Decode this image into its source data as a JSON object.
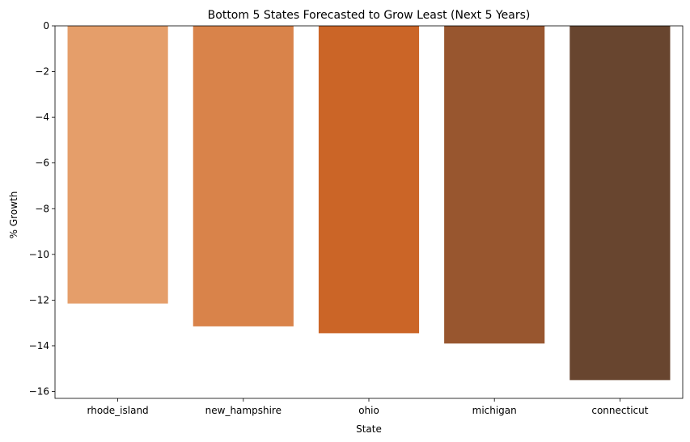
{
  "chart_data": {
    "type": "bar",
    "title": "Bottom 5 States Forecasted to Grow Least (Next 5 Years)",
    "xlabel": "State",
    "ylabel": "% Growth",
    "categories": [
      "rhode_island",
      "new_hampshire",
      "ohio",
      "michigan",
      "connecticut"
    ],
    "values": [
      -12.15,
      -13.15,
      -13.45,
      -13.9,
      -15.5
    ],
    "colors": [
      "#e59e6a",
      "#d9834a",
      "#cb6527",
      "#98562f",
      "#68452f"
    ],
    "ylim": [
      -16.3,
      0
    ],
    "yticks": [
      0,
      -2,
      -4,
      -6,
      -8,
      -10,
      -12,
      -14,
      -16
    ],
    "ytick_labels": [
      "0",
      "−2",
      "−4",
      "−6",
      "−8",
      "−10",
      "−12",
      "−14",
      "−16"
    ],
    "grid": false,
    "legend": false
  }
}
